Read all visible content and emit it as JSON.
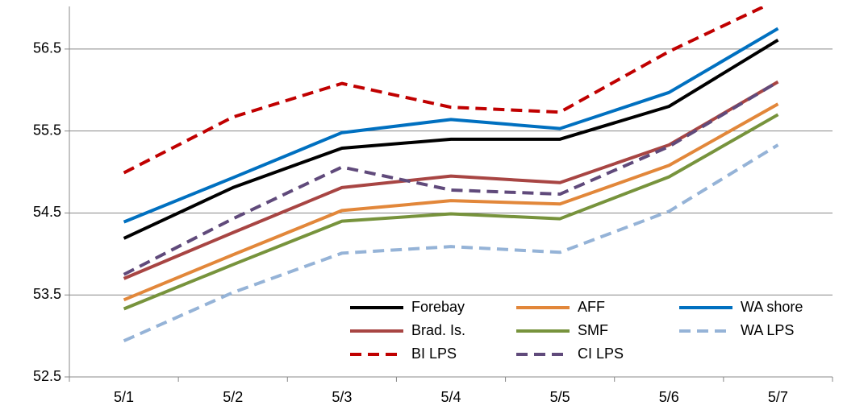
{
  "chart_data": {
    "type": "line",
    "categories": [
      "5/1",
      "5/2",
      "5/3",
      "5/4",
      "5/5",
      "5/6",
      "5/7"
    ],
    "ylim": [
      52.5,
      57.0
    ],
    "yticks": [
      52.5,
      53.5,
      54.5,
      55.5,
      56.5
    ],
    "grid": true,
    "legend": "lower right",
    "series": [
      {
        "name": "Forebay",
        "color": "#000000",
        "dash": "solid",
        "values": [
          54.19,
          54.81,
          55.29,
          55.4,
          55.4,
          55.8,
          56.61
        ]
      },
      {
        "name": "AFF",
        "color": "#e2873a",
        "dash": "solid",
        "values": [
          53.44,
          53.99,
          54.53,
          54.65,
          54.61,
          55.08,
          55.83
        ]
      },
      {
        "name": "WA shore",
        "color": "#0070c0",
        "dash": "solid",
        "values": [
          54.39,
          54.93,
          55.48,
          55.64,
          55.53,
          55.97,
          56.75
        ]
      },
      {
        "name": "Brad. Is.",
        "color": "#a84543",
        "dash": "solid",
        "values": [
          53.7,
          54.26,
          54.81,
          54.95,
          54.87,
          55.33,
          56.1
        ]
      },
      {
        "name": "SMF",
        "color": "#77933c",
        "dash": "solid",
        "values": [
          53.33,
          53.87,
          54.4,
          54.49,
          54.43,
          54.94,
          55.7
        ]
      },
      {
        "name": "WA LPS",
        "color": "#95b3d7",
        "dash": "dashed",
        "values": [
          52.94,
          53.53,
          54.01,
          54.09,
          54.02,
          54.52,
          55.33
        ]
      },
      {
        "name": "BI LPS",
        "color": "#c00000",
        "dash": "dashed",
        "values": [
          54.99,
          55.67,
          56.08,
          55.79,
          55.73,
          56.47,
          57.1
        ]
      },
      {
        "name": "CI LPS",
        "color": "#604a7b",
        "dash": "dashed",
        "values": [
          53.75,
          54.43,
          55.06,
          54.78,
          54.73,
          55.31,
          56.1
        ]
      }
    ]
  }
}
